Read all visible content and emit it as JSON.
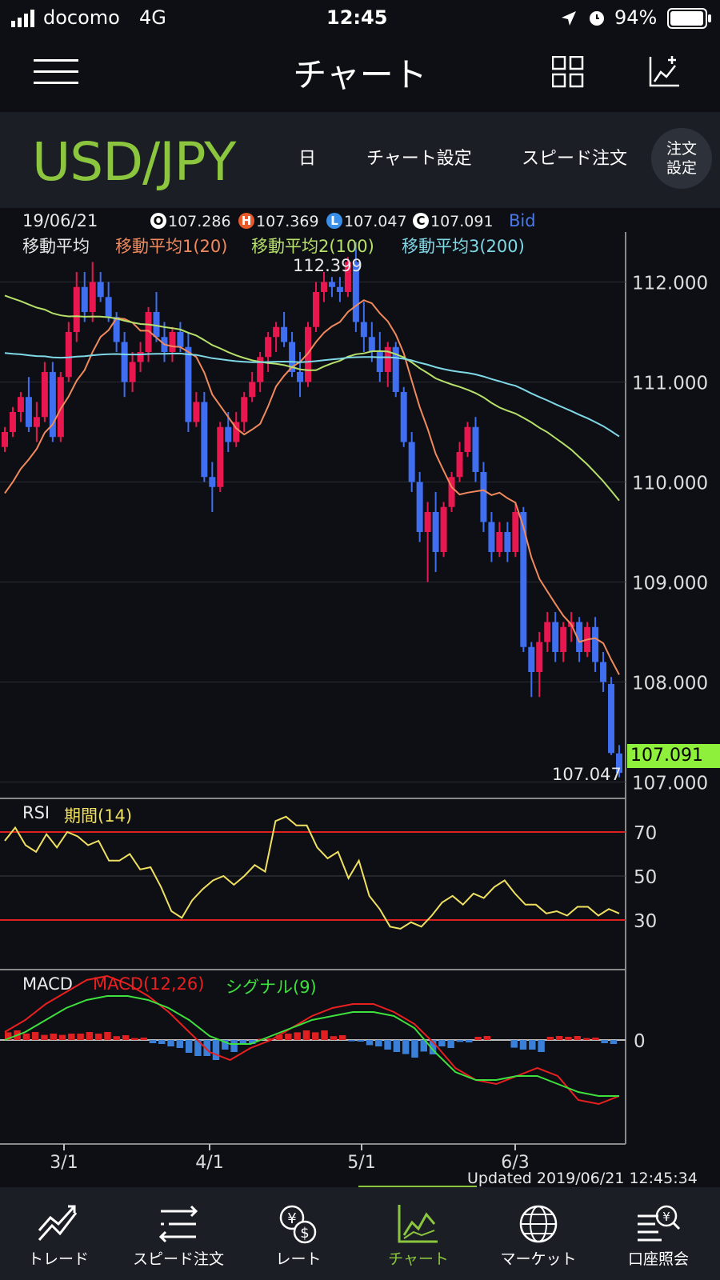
{
  "status_bar": {
    "carrier": "docomo",
    "network": "4G",
    "time": "12:45",
    "battery": "94%"
  },
  "nav": {
    "title": "チャート"
  },
  "pair_bar": {
    "symbol": "USD/JPY",
    "period": "日",
    "chart_settings": "チャート設定",
    "speed_order": "スピード注文",
    "order_settings_line1": "注文",
    "order_settings_line2": "設定"
  },
  "chart_info": {
    "date": "19/06/21",
    "open": "107.286",
    "high": "107.369",
    "low": "107.047",
    "close": "107.091",
    "price_type": "Bid",
    "ma_label": "移動平均",
    "ma1": "移動平均1(20)",
    "ma2": "移動平均2(100)",
    "ma3": "移動平均3(200)",
    "max_label": "112.399",
    "min_label": "107.047",
    "current_price": "107.091",
    "rsi_label": "RSI",
    "rsi_period": "期間(14)",
    "macd_label": "MACD",
    "macd_params": "MACD(12,26)",
    "signal_params": "シグナル(9)",
    "updated": "Updated  2019/06/21 12:45:34"
  },
  "colors": {
    "up": "#e8174f",
    "down": "#3f6ff0",
    "ma1": "#f08a5d",
    "ma2": "#b6e06a",
    "ma3": "#7fd8e6",
    "rsi": "#f0e060",
    "accent": "#8cc63f"
  },
  "chart_data": {
    "type": "candlestick",
    "price_axis_ticks": [
      "112.000",
      "111.000",
      "110.000",
      "109.000",
      "108.000",
      "107.000"
    ],
    "ylim": [
      106.9,
      112.5
    ],
    "x_ticks": [
      "3/1",
      "4/1",
      "5/1",
      "6/3"
    ],
    "candles": [
      [
        110.35,
        110.55,
        110.3,
        110.5
      ],
      [
        110.5,
        110.75,
        110.45,
        110.7
      ],
      [
        110.7,
        110.9,
        110.6,
        110.85
      ],
      [
        110.85,
        111.05,
        110.5,
        110.55
      ],
      [
        110.55,
        110.8,
        110.4,
        110.65
      ],
      [
        110.65,
        111.2,
        110.6,
        111.1
      ],
      [
        111.1,
        111.2,
        110.4,
        110.45
      ],
      [
        110.45,
        111.1,
        110.4,
        111.05
      ],
      [
        111.05,
        111.6,
        111.0,
        111.5
      ],
      [
        111.5,
        112.1,
        111.4,
        111.95
      ],
      [
        111.95,
        112.1,
        111.6,
        111.7
      ],
      [
        111.7,
        112.2,
        111.6,
        112.0
      ],
      [
        112.0,
        112.1,
        111.8,
        111.85
      ],
      [
        111.85,
        112.0,
        111.6,
        111.65
      ],
      [
        111.65,
        111.7,
        111.3,
        111.4
      ],
      [
        111.4,
        111.5,
        110.85,
        111.0
      ],
      [
        111.0,
        111.3,
        110.9,
        111.2
      ],
      [
        111.2,
        111.4,
        111.1,
        111.3
      ],
      [
        111.3,
        111.75,
        111.2,
        111.7
      ],
      [
        111.7,
        111.9,
        111.4,
        111.45
      ],
      [
        111.45,
        111.6,
        111.2,
        111.3
      ],
      [
        111.3,
        111.55,
        111.2,
        111.5
      ],
      [
        111.5,
        111.6,
        111.3,
        111.35
      ],
      [
        111.35,
        111.5,
        110.5,
        110.6
      ],
      [
        110.6,
        110.9,
        110.55,
        110.8
      ],
      [
        110.8,
        110.9,
        110.0,
        110.05
      ],
      [
        110.05,
        110.2,
        109.7,
        109.95
      ],
      [
        109.95,
        110.6,
        109.9,
        110.55
      ],
      [
        110.55,
        110.7,
        110.3,
        110.4
      ],
      [
        110.4,
        110.7,
        110.35,
        110.6
      ],
      [
        110.6,
        110.9,
        110.5,
        110.85
      ],
      [
        110.85,
        111.1,
        110.8,
        111.0
      ],
      [
        111.0,
        111.3,
        110.9,
        111.25
      ],
      [
        111.25,
        111.5,
        111.1,
        111.45
      ],
      [
        111.45,
        111.6,
        111.3,
        111.55
      ],
      [
        111.55,
        111.7,
        111.35,
        111.4
      ],
      [
        111.4,
        111.5,
        111.05,
        111.1
      ],
      [
        111.1,
        111.3,
        110.85,
        111.0
      ],
      [
        111.0,
        111.6,
        110.95,
        111.55
      ],
      [
        111.55,
        112.0,
        111.5,
        111.9
      ],
      [
        111.9,
        112.1,
        111.8,
        112.0
      ],
      [
        112.0,
        112.05,
        111.85,
        111.95
      ],
      [
        111.95,
        112.05,
        111.8,
        111.9
      ],
      [
        111.9,
        112.25,
        111.85,
        112.2
      ],
      [
        112.2,
        112.399,
        111.5,
        111.6
      ],
      [
        111.6,
        111.8,
        111.3,
        111.45
      ],
      [
        111.45,
        111.6,
        111.2,
        111.3
      ],
      [
        111.3,
        111.5,
        111.0,
        111.1
      ],
      [
        111.1,
        111.4,
        110.95,
        111.35
      ],
      [
        111.35,
        111.4,
        110.85,
        110.9
      ],
      [
        110.9,
        110.95,
        110.35,
        110.4
      ],
      [
        110.4,
        110.5,
        109.9,
        110.0
      ],
      [
        110.0,
        110.1,
        109.4,
        109.5
      ],
      [
        109.5,
        109.8,
        109.0,
        109.7
      ],
      [
        109.7,
        109.9,
        109.1,
        109.3
      ],
      [
        109.3,
        109.8,
        109.25,
        109.75
      ],
      [
        109.75,
        110.1,
        109.7,
        110.05
      ],
      [
        110.05,
        110.4,
        110.0,
        110.3
      ],
      [
        110.3,
        110.6,
        110.25,
        110.55
      ],
      [
        110.55,
        110.65,
        110.0,
        110.1
      ],
      [
        110.1,
        110.2,
        109.5,
        109.6
      ],
      [
        109.6,
        109.7,
        109.2,
        109.3
      ],
      [
        109.3,
        109.6,
        109.25,
        109.5
      ],
      [
        109.5,
        109.6,
        109.2,
        109.3
      ],
      [
        109.3,
        109.8,
        109.25,
        109.7
      ],
      [
        109.7,
        109.75,
        108.3,
        108.35
      ],
      [
        108.35,
        108.4,
        107.85,
        108.1
      ],
      [
        108.1,
        108.5,
        107.85,
        108.4
      ],
      [
        108.4,
        108.7,
        108.3,
        108.6
      ],
      [
        108.6,
        108.7,
        108.2,
        108.3
      ],
      [
        108.3,
        108.6,
        108.2,
        108.55
      ],
      [
        108.55,
        108.7,
        108.4,
        108.6
      ],
      [
        108.6,
        108.65,
        108.2,
        108.3
      ],
      [
        108.3,
        108.6,
        108.25,
        108.55
      ],
      [
        108.55,
        108.65,
        108.1,
        108.2
      ],
      [
        108.2,
        108.3,
        107.9,
        108.0
      ],
      [
        107.98,
        108.05,
        107.27,
        107.29
      ],
      [
        107.286,
        107.369,
        107.047,
        107.091
      ]
    ],
    "rsi_levels": [
      70,
      50,
      30
    ],
    "rsi_values": [
      66,
      72,
      64,
      61,
      69,
      63,
      70,
      68,
      64,
      66,
      57,
      57,
      60,
      53,
      54,
      45,
      34,
      31,
      39,
      44,
      48,
      50,
      46,
      50,
      55,
      52,
      75,
      77,
      73,
      73,
      63,
      58,
      61,
      49,
      57,
      41,
      35,
      27,
      26,
      29,
      27,
      32,
      38,
      41,
      37,
      42,
      40,
      45,
      48,
      42,
      37,
      37,
      33,
      34,
      32,
      36,
      36,
      32,
      35,
      33
    ],
    "macd_zero_label": "0",
    "macd_line": [
      0.1,
      0.25,
      0.45,
      0.6,
      0.75,
      0.8,
      0.7,
      0.55,
      0.35,
      0.1,
      -0.15,
      -0.25,
      -0.1,
      0.0,
      0.15,
      0.3,
      0.4,
      0.45,
      0.45,
      0.35,
      0.2,
      -0.05,
      -0.35,
      -0.5,
      -0.55,
      -0.45,
      -0.35,
      -0.45,
      -0.75,
      -0.8,
      -0.7
    ],
    "signal_line": [
      0.0,
      0.1,
      0.25,
      0.4,
      0.5,
      0.55,
      0.55,
      0.5,
      0.4,
      0.25,
      0.05,
      -0.05,
      -0.05,
      0.05,
      0.15,
      0.25,
      0.3,
      0.35,
      0.35,
      0.3,
      0.15,
      -0.15,
      -0.4,
      -0.5,
      -0.5,
      -0.45,
      -0.45,
      -0.55,
      -0.65,
      -0.7,
      -0.7
    ],
    "macd_hist": [
      0.12,
      0.1,
      0.08,
      0.08,
      0.1,
      0.1,
      0.06,
      0.03,
      -0.05,
      -0.1,
      -0.2,
      -0.25,
      -0.15,
      -0.05,
      0.02,
      0.08,
      0.12,
      0.12,
      0.06,
      -0.02,
      -0.08,
      -0.15,
      -0.22,
      -0.18,
      -0.1,
      -0.03,
      0.05,
      0.0,
      -0.12,
      -0.15,
      0.05,
      0.05,
      0.03,
      -0.05
    ]
  },
  "tabs": [
    {
      "label": "トレード"
    },
    {
      "label": "スピード注文"
    },
    {
      "label": "レート"
    },
    {
      "label": "チャート"
    },
    {
      "label": "マーケット"
    },
    {
      "label": "口座照会"
    }
  ]
}
